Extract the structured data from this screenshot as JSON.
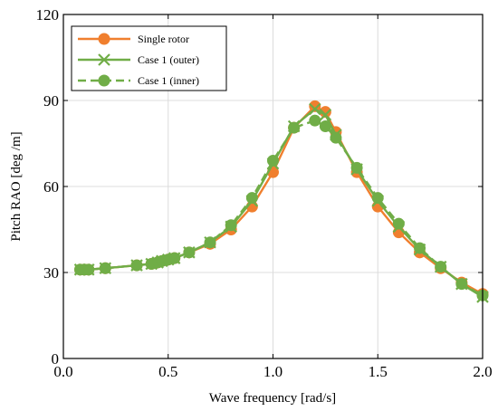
{
  "chart_data": {
    "type": "line",
    "xlabel": "Wave frequency [rad/s]",
    "ylabel": "Pitch RAO [deg /m]",
    "xlim": [
      0.0,
      2.0
    ],
    "ylim": [
      0,
      120
    ],
    "x_ticks": [
      0.0,
      0.5,
      1.0,
      1.5,
      2.0
    ],
    "x_tick_labels": [
      "0.0",
      "0.5",
      "1.0",
      "1.5",
      "2.0"
    ],
    "y_ticks": [
      0,
      30,
      60,
      90,
      120
    ],
    "y_tick_labels": [
      "0",
      "30",
      "60",
      "90",
      "120"
    ],
    "grid": true,
    "legend_position": "top-left",
    "series": [
      {
        "name": "Single rotor",
        "color": "#F07F2E",
        "marker": "circle",
        "line": "solid",
        "x": [
          0.08,
          0.1,
          0.12,
          0.2,
          0.35,
          0.42,
          0.45,
          0.47,
          0.5,
          0.53,
          0.6,
          0.7,
          0.8,
          0.9,
          1.0,
          1.1,
          1.2,
          1.25,
          1.3,
          1.4,
          1.5,
          1.6,
          1.7,
          1.8,
          1.9,
          2.0
        ],
        "y": [
          31,
          31,
          31,
          31.5,
          32.5,
          33,
          33.5,
          34,
          34.5,
          35,
          37,
          40,
          45,
          53,
          65,
          80.5,
          88,
          86,
          79,
          65,
          53,
          44,
          37,
          31.5,
          26.5,
          22.5
        ]
      },
      {
        "name": "Case 1 (outer)",
        "color": "#70AD47",
        "marker": "x",
        "line": "solid",
        "x": [
          0.08,
          0.1,
          0.12,
          0.2,
          0.35,
          0.42,
          0.45,
          0.47,
          0.5,
          0.53,
          0.6,
          0.7,
          0.8,
          0.9,
          1.0,
          1.1,
          1.2,
          1.25,
          1.3,
          1.4,
          1.5,
          1.6,
          1.7,
          1.8,
          1.9,
          2.0
        ],
        "y": [
          31,
          31,
          31,
          31.5,
          32.5,
          33,
          33.5,
          34,
          34.5,
          35,
          37,
          40.5,
          46,
          55,
          68,
          81,
          87,
          85,
          78,
          66,
          55,
          46,
          38,
          32,
          26,
          21.5
        ]
      },
      {
        "name": "Case 1 (inner)",
        "color": "#70AD47",
        "marker": "circle",
        "line": "dashed",
        "x": [
          0.08,
          0.1,
          0.12,
          0.2,
          0.35,
          0.42,
          0.45,
          0.47,
          0.5,
          0.53,
          0.6,
          0.7,
          0.8,
          0.9,
          1.0,
          1.1,
          1.2,
          1.25,
          1.3,
          1.4,
          1.5,
          1.6,
          1.7,
          1.8,
          1.9,
          2.0
        ],
        "y": [
          31,
          31,
          31,
          31.5,
          32.5,
          33,
          33.5,
          34,
          34.5,
          35,
          37,
          40.5,
          46.5,
          56,
          69,
          80.5,
          83,
          81,
          77,
          66.5,
          56,
          47,
          38.5,
          32,
          26,
          22
        ]
      }
    ]
  }
}
